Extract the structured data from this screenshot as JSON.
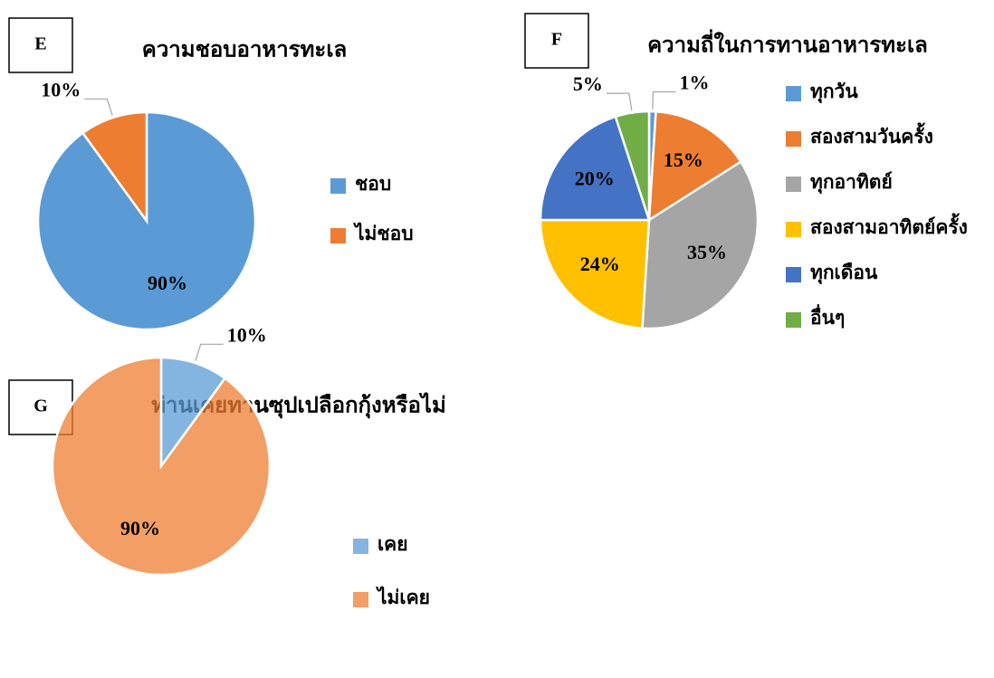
{
  "chart_data": [
    {
      "type": "pie",
      "panel": "E",
      "title": "ความชอบอาหารทะเล",
      "categories": [
        "ชอบ",
        "ไม่ชอบ"
      ],
      "values": [
        90,
        10
      ],
      "value_labels": [
        "90%",
        "10%"
      ],
      "colors": [
        "#5b9bd5",
        "#ed7d31"
      ],
      "opacity": 1
    },
    {
      "type": "pie",
      "panel": "F",
      "title": "ความถี่ในการทานอาหารทะเล",
      "categories": [
        "ทุกวัน",
        "สองสามวันครั้ง",
        "ทุกอาทิตย์",
        "สองสามอาทิตย์ครั้ง",
        "ทุกเดือน",
        "อื่นๆ"
      ],
      "values": [
        1,
        15,
        35,
        24,
        20,
        5
      ],
      "value_labels": [
        "1%",
        "15%",
        "35%",
        "24%",
        "20%",
        "5%"
      ],
      "colors": [
        "#5b9bd5",
        "#ed7d31",
        "#a5a5a5",
        "#ffc000",
        "#4472c4",
        "#70ad47"
      ],
      "opacity": 1
    },
    {
      "type": "pie",
      "panel": "G",
      "title": "ท่านเคยทานซุปเปลือกกุ้งหรือไม่",
      "categories": [
        "เคย",
        "ไม่เคย"
      ],
      "values": [
        10,
        90
      ],
      "value_labels": [
        "10%",
        "90%"
      ],
      "colors": [
        "#5b9bd5",
        "#ed7d31"
      ],
      "opacity": 0.75
    }
  ]
}
